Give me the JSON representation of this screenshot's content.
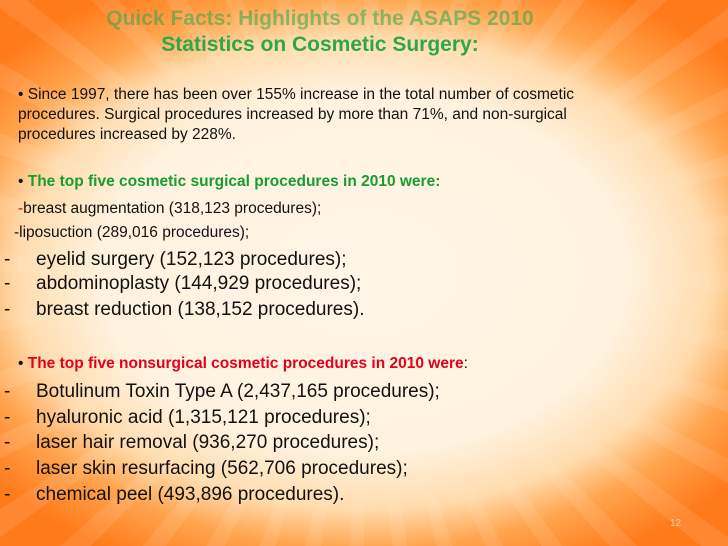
{
  "title": {
    "line1": "Quick Facts: Highlights of the ASAPS 2010",
    "line2": "Statistics on Cosmetic Surgery:"
  },
  "intro": {
    "bullet": "•",
    "line1": "Since 1997, there has been over 155% increase in the total number of cosmetic",
    "line2": "procedures. Surgical procedures increased by more than 71%, and non-surgical",
    "line3": "procedures increased by 228%."
  },
  "surgical": {
    "bullet": "•",
    "heading": "The top five cosmetic surgical procedures in 2010 were:",
    "items": [
      {
        "dash": "-",
        "text": "breast augmentation (318,123 procedures);"
      },
      {
        "dash": "-",
        "text": "liposuction (289,016 procedures);"
      },
      {
        "dash": "-",
        "text": "eyelid surgery (152,123 procedures);"
      },
      {
        "dash": "-",
        "text": "abdominoplasty (144,929 procedures);"
      },
      {
        "dash": "-",
        "text": "breast reduction (138,152 procedures)."
      }
    ]
  },
  "nonsurgical": {
    "bullet": "•",
    "heading": "The top five nonsurgical cosmetic procedures in 2010 were",
    "colon": ":",
    "items": [
      {
        "dash": "-",
        "text": "Botulinum Toxin Type A (2,437,165 procedures);"
      },
      {
        "dash": "-",
        "text": "hyaluronic acid (1,315,121 procedures);"
      },
      {
        "dash": "-",
        "text": "laser hair removal (936,270 procedures);"
      },
      {
        "dash": "-",
        "text": "laser skin resurfacing (562,706 procedures);"
      },
      {
        "dash": "-",
        "text": "chemical peel (493,896 procedures)."
      }
    ]
  },
  "page_number": "12"
}
